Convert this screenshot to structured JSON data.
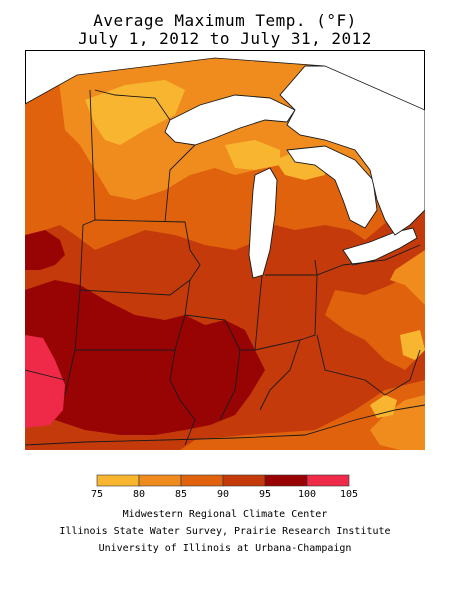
{
  "title": {
    "line1": "Average Maximum Temp. (°F)",
    "line2": "July 1, 2012 to July 31, 2012"
  },
  "legend": {
    "bins": [
      {
        "low": 75,
        "high": 80,
        "color": "#F8B630"
      },
      {
        "low": 80,
        "high": 85,
        "color": "#F08C1E"
      },
      {
        "low": 85,
        "high": 90,
        "color": "#E0620C"
      },
      {
        "low": 90,
        "high": 95,
        "color": "#C43A0A"
      },
      {
        "low": 95,
        "high": 100,
        "color": "#980404"
      },
      {
        "low": 100,
        "high": 105,
        "color": "#EE2A48"
      }
    ],
    "tick_labels": [
      "75",
      "80",
      "85",
      "90",
      "95",
      "100",
      "105"
    ]
  },
  "colors": {
    "land_border": "#1a1a1a",
    "water": "#ffffff"
  },
  "credits": {
    "line1": "Midwestern Regional Climate Center",
    "line2": "Illinois State Water Survey, Prairie Research Institute",
    "line3": "University of Illinois at Urbana-Champaign"
  }
}
